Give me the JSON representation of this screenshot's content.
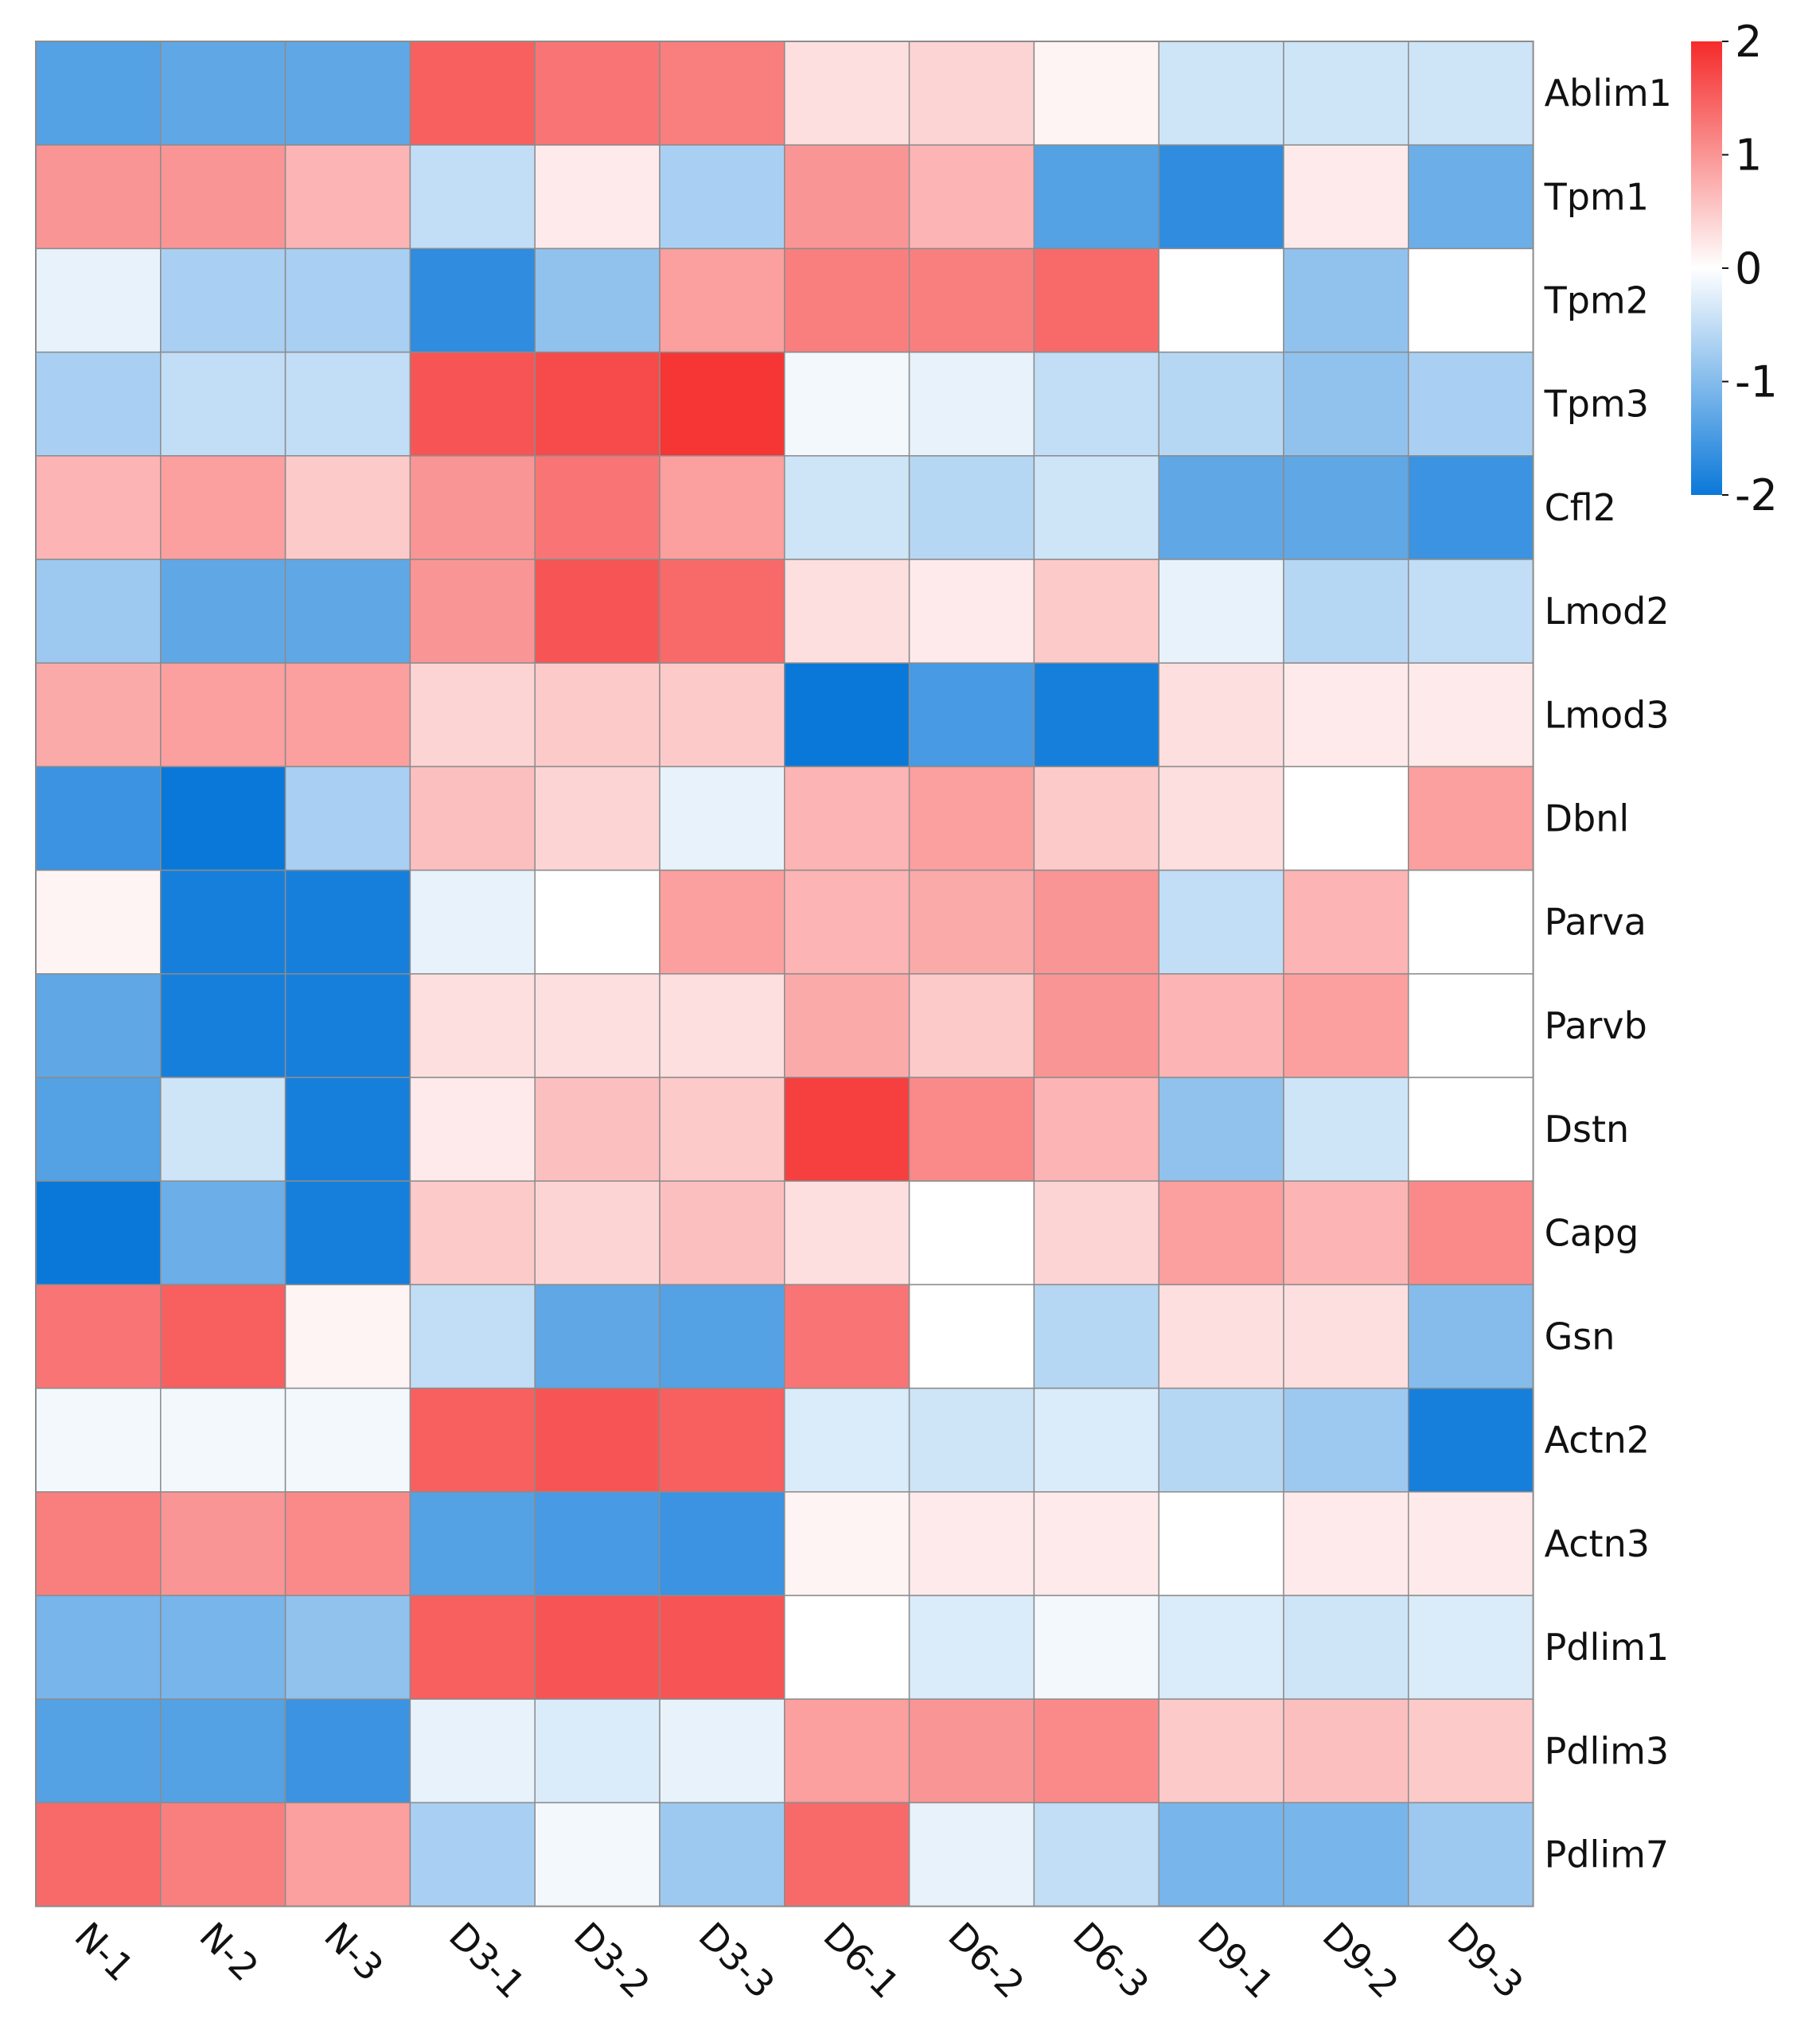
{
  "chart_data": {
    "type": "heatmap",
    "title": "",
    "xlabel": "",
    "ylabel": "",
    "columns": [
      "N-1",
      "N-2",
      "N-3",
      "D3-1",
      "D3-2",
      "D3-3",
      "D6-1",
      "D6-2",
      "D6-3",
      "D9-1",
      "D9-2",
      "D9-3"
    ],
    "rows": [
      "Ablim1",
      "Tpm1",
      "Tpm2",
      "Tpm3",
      "Cfl2",
      "Lmod2",
      "Lmod3",
      "Dbnl",
      "Parva",
      "Parvb",
      "Dstn",
      "Capg",
      "Gsn",
      "Actn2",
      "Actn3",
      "Pdlim1",
      "Pdlim3",
      "Pdlim7"
    ],
    "values": [
      [
        -1.4,
        -1.3,
        -1.3,
        1.5,
        1.3,
        1.2,
        0.3,
        0.4,
        0.1,
        -0.4,
        -0.4,
        -0.4
      ],
      [
        1.0,
        1.0,
        0.7,
        -0.5,
        0.2,
        -0.7,
        1.0,
        0.7,
        -1.4,
        -1.7,
        0.2,
        -1.2
      ],
      [
        -0.2,
        -0.7,
        -0.7,
        -1.7,
        -0.9,
        0.9,
        1.2,
        1.2,
        1.4,
        0.0,
        -0.9,
        0.0
      ],
      [
        -0.7,
        -0.5,
        -0.5,
        1.6,
        1.7,
        1.9,
        -0.1,
        -0.2,
        -0.5,
        -0.6,
        -0.9,
        -0.7
      ],
      [
        0.7,
        0.9,
        0.5,
        1.0,
        1.3,
        0.9,
        -0.4,
        -0.6,
        -0.4,
        -1.3,
        -1.3,
        -1.6
      ],
      [
        -0.8,
        -1.3,
        -1.3,
        1.0,
        1.6,
        1.4,
        0.3,
        0.2,
        0.5,
        -0.2,
        -0.6,
        -0.5
      ],
      [
        0.8,
        0.9,
        0.9,
        0.4,
        0.5,
        0.5,
        -2.0,
        -1.5,
        -1.9,
        0.3,
        0.2,
        0.2
      ],
      [
        -1.6,
        -2.0,
        -0.7,
        0.6,
        0.4,
        -0.2,
        0.7,
        0.9,
        0.5,
        0.3,
        0.0,
        0.9
      ],
      [
        0.1,
        -1.9,
        -1.9,
        -0.2,
        0.0,
        0.9,
        0.7,
        0.8,
        1.0,
        -0.5,
        0.7,
        0.0
      ],
      [
        -1.3,
        -1.9,
        -1.9,
        0.3,
        0.3,
        0.3,
        0.8,
        0.5,
        1.0,
        0.7,
        0.9,
        0.0
      ],
      [
        -1.4,
        -0.4,
        -1.9,
        0.2,
        0.6,
        0.5,
        1.8,
        1.1,
        0.7,
        -0.9,
        -0.4,
        0.0
      ],
      [
        -2.0,
        -1.2,
        -1.9,
        0.5,
        0.4,
        0.6,
        0.3,
        0.0,
        0.4,
        0.9,
        0.7,
        1.1
      ],
      [
        1.3,
        1.5,
        0.1,
        -0.5,
        -1.3,
        -1.4,
        1.3,
        0.0,
        -0.6,
        0.3,
        0.3,
        -1.0
      ],
      [
        -0.1,
        -0.1,
        -0.1,
        1.5,
        1.6,
        1.5,
        -0.3,
        -0.4,
        -0.3,
        -0.6,
        -0.8,
        -1.9
      ],
      [
        1.2,
        1.0,
        1.1,
        -1.4,
        -1.5,
        -1.6,
        0.1,
        0.2,
        0.2,
        0.0,
        0.2,
        0.2
      ],
      [
        -1.1,
        -1.1,
        -0.9,
        1.5,
        1.6,
        1.6,
        0.0,
        -0.3,
        -0.1,
        -0.3,
        -0.4,
        -0.3
      ],
      [
        -1.4,
        -1.4,
        -1.6,
        -0.2,
        -0.3,
        -0.2,
        0.9,
        1.0,
        1.1,
        0.5,
        0.6,
        0.5
      ],
      [
        1.4,
        1.2,
        0.9,
        -0.7,
        -0.1,
        -0.8,
        1.4,
        -0.2,
        -0.5,
        -1.1,
        -1.1,
        -0.8
      ]
    ],
    "colorbar": {
      "range": [
        -2,
        2
      ],
      "ticks": [
        2,
        1,
        0,
        -1,
        -2
      ],
      "tick_labels": [
        "2",
        "1",
        "0",
        "-1",
        "-2"
      ],
      "low_color": "#0a78d9",
      "mid_color": "#ffffff",
      "high_color": "#f52a2a"
    },
    "grid": true,
    "legend": "right"
  }
}
